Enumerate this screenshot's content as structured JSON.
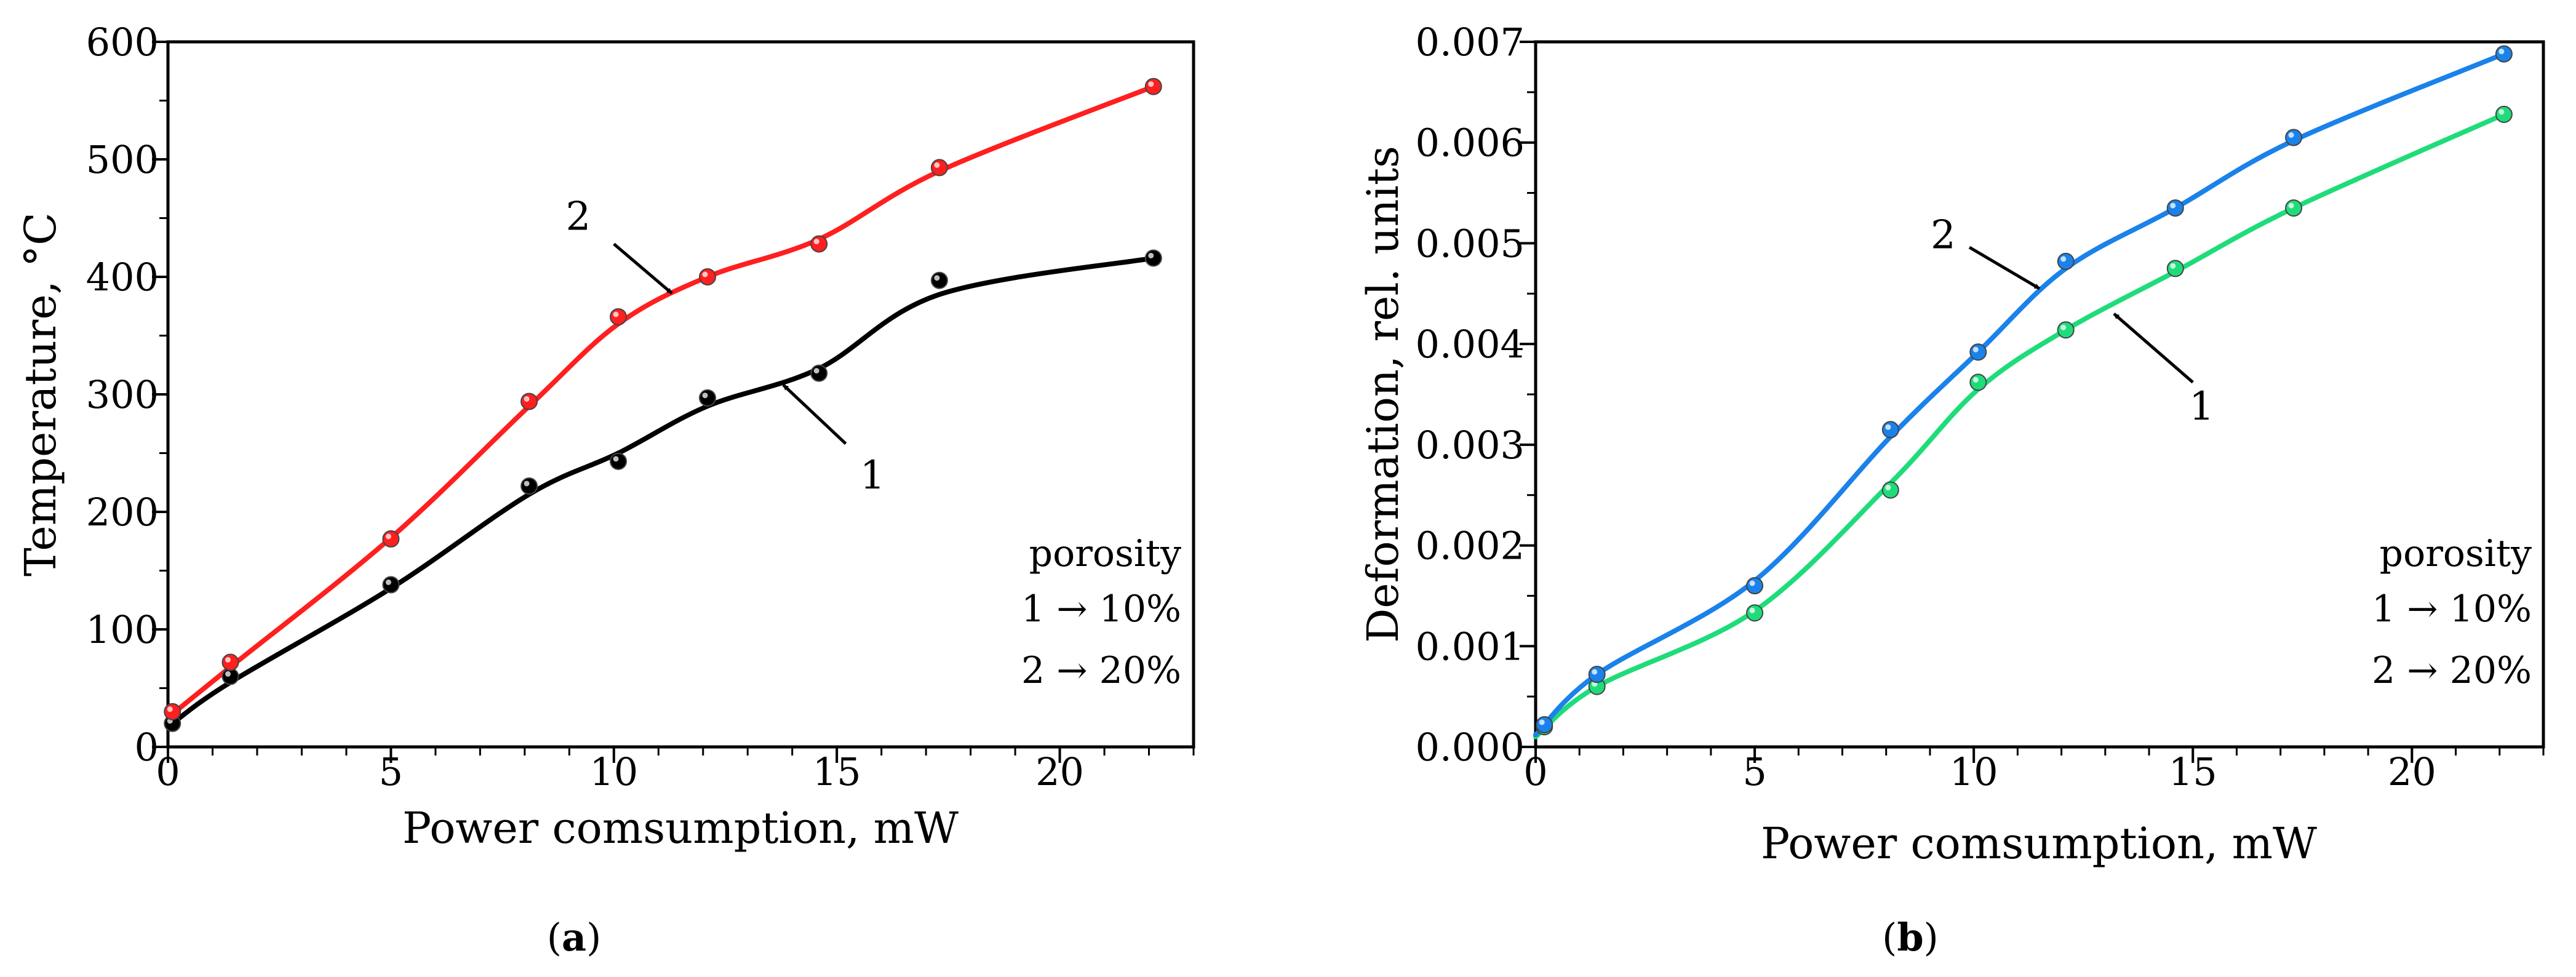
{
  "chart_data": [
    {
      "id": "a",
      "type": "line",
      "panel_label": "a",
      "title": "",
      "xlabel": "Power comsumption, mW",
      "ylabel": "Temperature, °C",
      "xlim": [
        0,
        23
      ],
      "ylim": [
        0,
        600
      ],
      "xticks": [
        0,
        5,
        10,
        15,
        20
      ],
      "yticks": [
        0,
        100,
        200,
        300,
        400,
        500,
        600
      ],
      "xtick_labels": [
        "0",
        "5",
        "10",
        "15",
        "20"
      ],
      "ytick_labels": [
        "0",
        "100",
        "200",
        "300",
        "400",
        "500",
        "600"
      ],
      "grid": false,
      "series": [
        {
          "name": "1",
          "color": "#000000",
          "points": [
            [
              0.1,
              20
            ],
            [
              1.4,
              60
            ],
            [
              5.0,
              138
            ],
            [
              8.1,
              222
            ],
            [
              10.1,
              243
            ],
            [
              12.1,
              297
            ],
            [
              14.6,
              318
            ],
            [
              17.3,
              397
            ],
            [
              22.1,
              416
            ]
          ],
          "curve": [
            [
              0.1,
              20
            ],
            [
              1.4,
              55
            ],
            [
              5.0,
              135
            ],
            [
              8.1,
              215
            ],
            [
              10.1,
              250
            ],
            [
              12.1,
              290
            ],
            [
              14.6,
              322
            ],
            [
              17.3,
              385
            ],
            [
              22.1,
              416
            ]
          ]
        },
        {
          "name": "2",
          "color": "#ff1f1f",
          "points": [
            [
              0.1,
              30
            ],
            [
              1.4,
              72
            ],
            [
              5.0,
              177
            ],
            [
              8.1,
              294
            ],
            [
              10.1,
              366
            ],
            [
              12.1,
              400
            ],
            [
              14.6,
              428
            ],
            [
              17.3,
              493
            ],
            [
              22.1,
              562
            ]
          ],
          "curve": [
            [
              0.1,
              28
            ],
            [
              1.4,
              68
            ],
            [
              5.0,
              178
            ],
            [
              8.1,
              290
            ],
            [
              10.1,
              360
            ],
            [
              12.1,
              400
            ],
            [
              14.6,
              432
            ],
            [
              17.3,
              490
            ],
            [
              22.1,
              562
            ]
          ]
        }
      ],
      "annotations": [
        {
          "text": "2",
          "text_at": [
            9.2,
            440
          ],
          "arrow_from": [
            10.0,
            428
          ],
          "arrow_to": [
            11.3,
            386
          ]
        },
        {
          "text": "1",
          "text_at": [
            15.8,
            220
          ],
          "arrow_from": [
            15.2,
            258
          ],
          "arrow_to": [
            13.8,
            308
          ]
        }
      ],
      "legend": {
        "lines": [
          "porosity",
          "1 → 10%",
          "2 → 20%"
        ]
      }
    },
    {
      "id": "b",
      "type": "line",
      "panel_label": "b",
      "title": "",
      "xlabel": "Power comsumption, mW",
      "ylabel": "Deformation, rel. units",
      "xlim": [
        0,
        23
      ],
      "ylim": [
        0,
        0.007
      ],
      "xticks": [
        0,
        5,
        10,
        15,
        20
      ],
      "yticks": [
        0,
        0.001,
        0.002,
        0.003,
        0.004,
        0.005,
        0.006,
        0.007
      ],
      "xtick_labels": [
        "0",
        "5",
        "10",
        "15",
        "20"
      ],
      "ytick_labels": [
        "0.000",
        "0.001",
        "0.002",
        "0.003",
        "0.004",
        "0.005",
        "0.006",
        "0.007"
      ],
      "grid": false,
      "series": [
        {
          "name": "1",
          "color": "#1fdc7a",
          "points": [
            [
              0.2,
              0.0002
            ],
            [
              1.4,
              0.0006
            ],
            [
              5.0,
              0.00133
            ],
            [
              8.1,
              0.00255
            ],
            [
              10.1,
              0.00362
            ],
            [
              12.1,
              0.00414
            ],
            [
              14.6,
              0.00475
            ],
            [
              17.3,
              0.00535
            ],
            [
              22.1,
              0.00628
            ]
          ],
          "curve": [
            [
              0.0,
              0.0001
            ],
            [
              1.4,
              0.0006
            ],
            [
              5.0,
              0.00135
            ],
            [
              8.1,
              0.00262
            ],
            [
              10.1,
              0.00355
            ],
            [
              12.1,
              0.00414
            ],
            [
              14.6,
              0.00472
            ],
            [
              17.3,
              0.00535
            ],
            [
              22.1,
              0.00628
            ]
          ]
        },
        {
          "name": "2",
          "color": "#1a82ea",
          "points": [
            [
              0.2,
              0.00022
            ],
            [
              1.4,
              0.00072
            ],
            [
              5.0,
              0.0016
            ],
            [
              8.1,
              0.00315
            ],
            [
              10.1,
              0.00392
            ],
            [
              12.1,
              0.00482
            ],
            [
              14.6,
              0.00535
            ],
            [
              17.3,
              0.00605
            ],
            [
              22.1,
              0.00688
            ]
          ],
          "curve": [
            [
              0.0,
              0.00012
            ],
            [
              1.4,
              0.00072
            ],
            [
              5.0,
              0.00165
            ],
            [
              8.1,
              0.00308
            ],
            [
              10.1,
              0.00392
            ],
            [
              12.1,
              0.00475
            ],
            [
              14.6,
              0.00535
            ],
            [
              17.3,
              0.00602
            ],
            [
              22.1,
              0.00688
            ]
          ]
        }
      ],
      "annotations": [
        {
          "text": "2",
          "text_at": [
            9.3,
            0.00495
          ],
          "arrow_from": [
            9.9,
            0.00496
          ],
          "arrow_to": [
            11.5,
            0.00455
          ]
        },
        {
          "text": "1",
          "text_at": [
            15.2,
            0.00325
          ],
          "arrow_from": [
            15.0,
            0.00362
          ],
          "arrow_to": [
            13.2,
            0.0043
          ]
        }
      ],
      "legend": {
        "lines": [
          "porosity",
          "1 → 10%",
          "2 → 20%"
        ]
      }
    }
  ]
}
